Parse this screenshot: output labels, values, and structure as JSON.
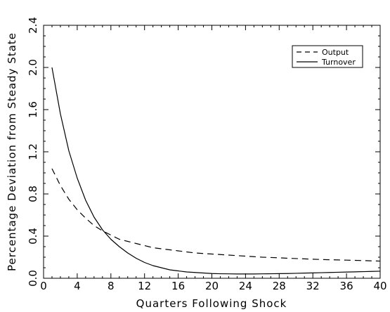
{
  "chart_data": {
    "type": "line",
    "title": "",
    "xlabel": "Quarters Following Shock",
    "ylabel": "Percentage Deviation from Steady State",
    "xlim": [
      0,
      40
    ],
    "ylim": [
      0,
      2.4
    ],
    "x_ticks": [
      0,
      4,
      8,
      12,
      16,
      20,
      24,
      28,
      32,
      36,
      40
    ],
    "x_tick_labels": [
      "0",
      "4",
      "8",
      "12",
      "16",
      "20",
      "24",
      "28",
      "32",
      "36",
      "40"
    ],
    "y_ticks": [
      0,
      0.4,
      0.8,
      1.2,
      1.6,
      2.0,
      2.4
    ],
    "y_tick_labels": [
      "0.0",
      "0.4",
      "0.8",
      "1.2",
      "1.6",
      "2.0",
      "2.4"
    ],
    "grid": false,
    "legend_position": "top-right",
    "x": [
      1,
      2,
      3,
      4,
      5,
      6,
      7,
      8,
      9,
      10,
      11,
      12,
      13,
      14,
      15,
      16,
      17,
      18,
      19,
      20,
      21,
      22,
      23,
      24,
      25,
      26,
      27,
      28,
      29,
      30,
      31,
      32,
      33,
      34,
      35,
      36,
      37,
      38,
      39,
      40
    ],
    "series": [
      {
        "name": "Output",
        "style": "dashed",
        "color": "#000000",
        "values": [
          1.04,
          0.88,
          0.75,
          0.65,
          0.57,
          0.5,
          0.45,
          0.41,
          0.37,
          0.35,
          0.33,
          0.31,
          0.29,
          0.28,
          0.27,
          0.26,
          0.25,
          0.24,
          0.235,
          0.23,
          0.225,
          0.22,
          0.215,
          0.21,
          0.205,
          0.2,
          0.197,
          0.194,
          0.19,
          0.187,
          0.184,
          0.181,
          0.178,
          0.176,
          0.174,
          0.172,
          0.17,
          0.168,
          0.165,
          0.163
        ]
      },
      {
        "name": "Turnover",
        "style": "solid",
        "color": "#000000",
        "values": [
          2.0,
          1.56,
          1.21,
          0.95,
          0.74,
          0.58,
          0.46,
          0.37,
          0.3,
          0.24,
          0.19,
          0.15,
          0.12,
          0.1,
          0.08,
          0.07,
          0.06,
          0.055,
          0.05,
          0.045,
          0.043,
          0.042,
          0.041,
          0.041,
          0.041,
          0.042,
          0.043,
          0.044,
          0.045,
          0.047,
          0.049,
          0.051,
          0.053,
          0.055,
          0.057,
          0.059,
          0.061,
          0.063,
          0.065,
          0.067
        ]
      }
    ]
  }
}
